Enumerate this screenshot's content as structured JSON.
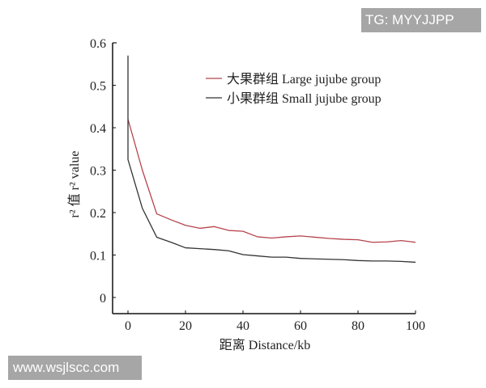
{
  "watermarks": {
    "top_right": "TG: MYYJJPP",
    "bottom_left": "www.wsjlscc.com"
  },
  "chart_data": {
    "type": "line",
    "title": "",
    "xlabel": "距离 Distance/kb",
    "ylabel": "r² 值 r² value",
    "xlim": [
      0,
      100
    ],
    "ylim": [
      0,
      0.6
    ],
    "x_ticks": [
      "0",
      "20",
      "40",
      "60",
      "80",
      "100"
    ],
    "y_ticks": [
      "0",
      "0.1",
      "0.2",
      "0.3",
      "0.4",
      "0.5",
      "0.6"
    ],
    "grid": false,
    "legend_position": "upper right",
    "x": [
      0,
      5,
      10,
      15,
      20,
      25,
      30,
      35,
      40,
      45,
      50,
      55,
      60,
      65,
      70,
      75,
      80,
      85,
      90,
      95,
      100
    ],
    "series": [
      {
        "name": "大果群组 Large jujube group",
        "color": "#b5444c",
        "values": [
          0.42,
          0.3,
          0.197,
          0.183,
          0.17,
          0.163,
          0.167,
          0.158,
          0.156,
          0.143,
          0.14,
          0.143,
          0.145,
          0.142,
          0.139,
          0.137,
          0.136,
          0.13,
          0.131,
          0.134,
          0.13
        ]
      },
      {
        "name": "小果群组 Small jujube group",
        "color": "#333333",
        "values": [
          0.325,
          0.21,
          0.142,
          0.13,
          0.117,
          0.115,
          0.113,
          0.11,
          0.101,
          0.098,
          0.095,
          0.095,
          0.092,
          0.091,
          0.09,
          0.089,
          0.087,
          0.086,
          0.086,
          0.085,
          0.083
        ],
        "initial_spike": 0.57
      }
    ]
  }
}
